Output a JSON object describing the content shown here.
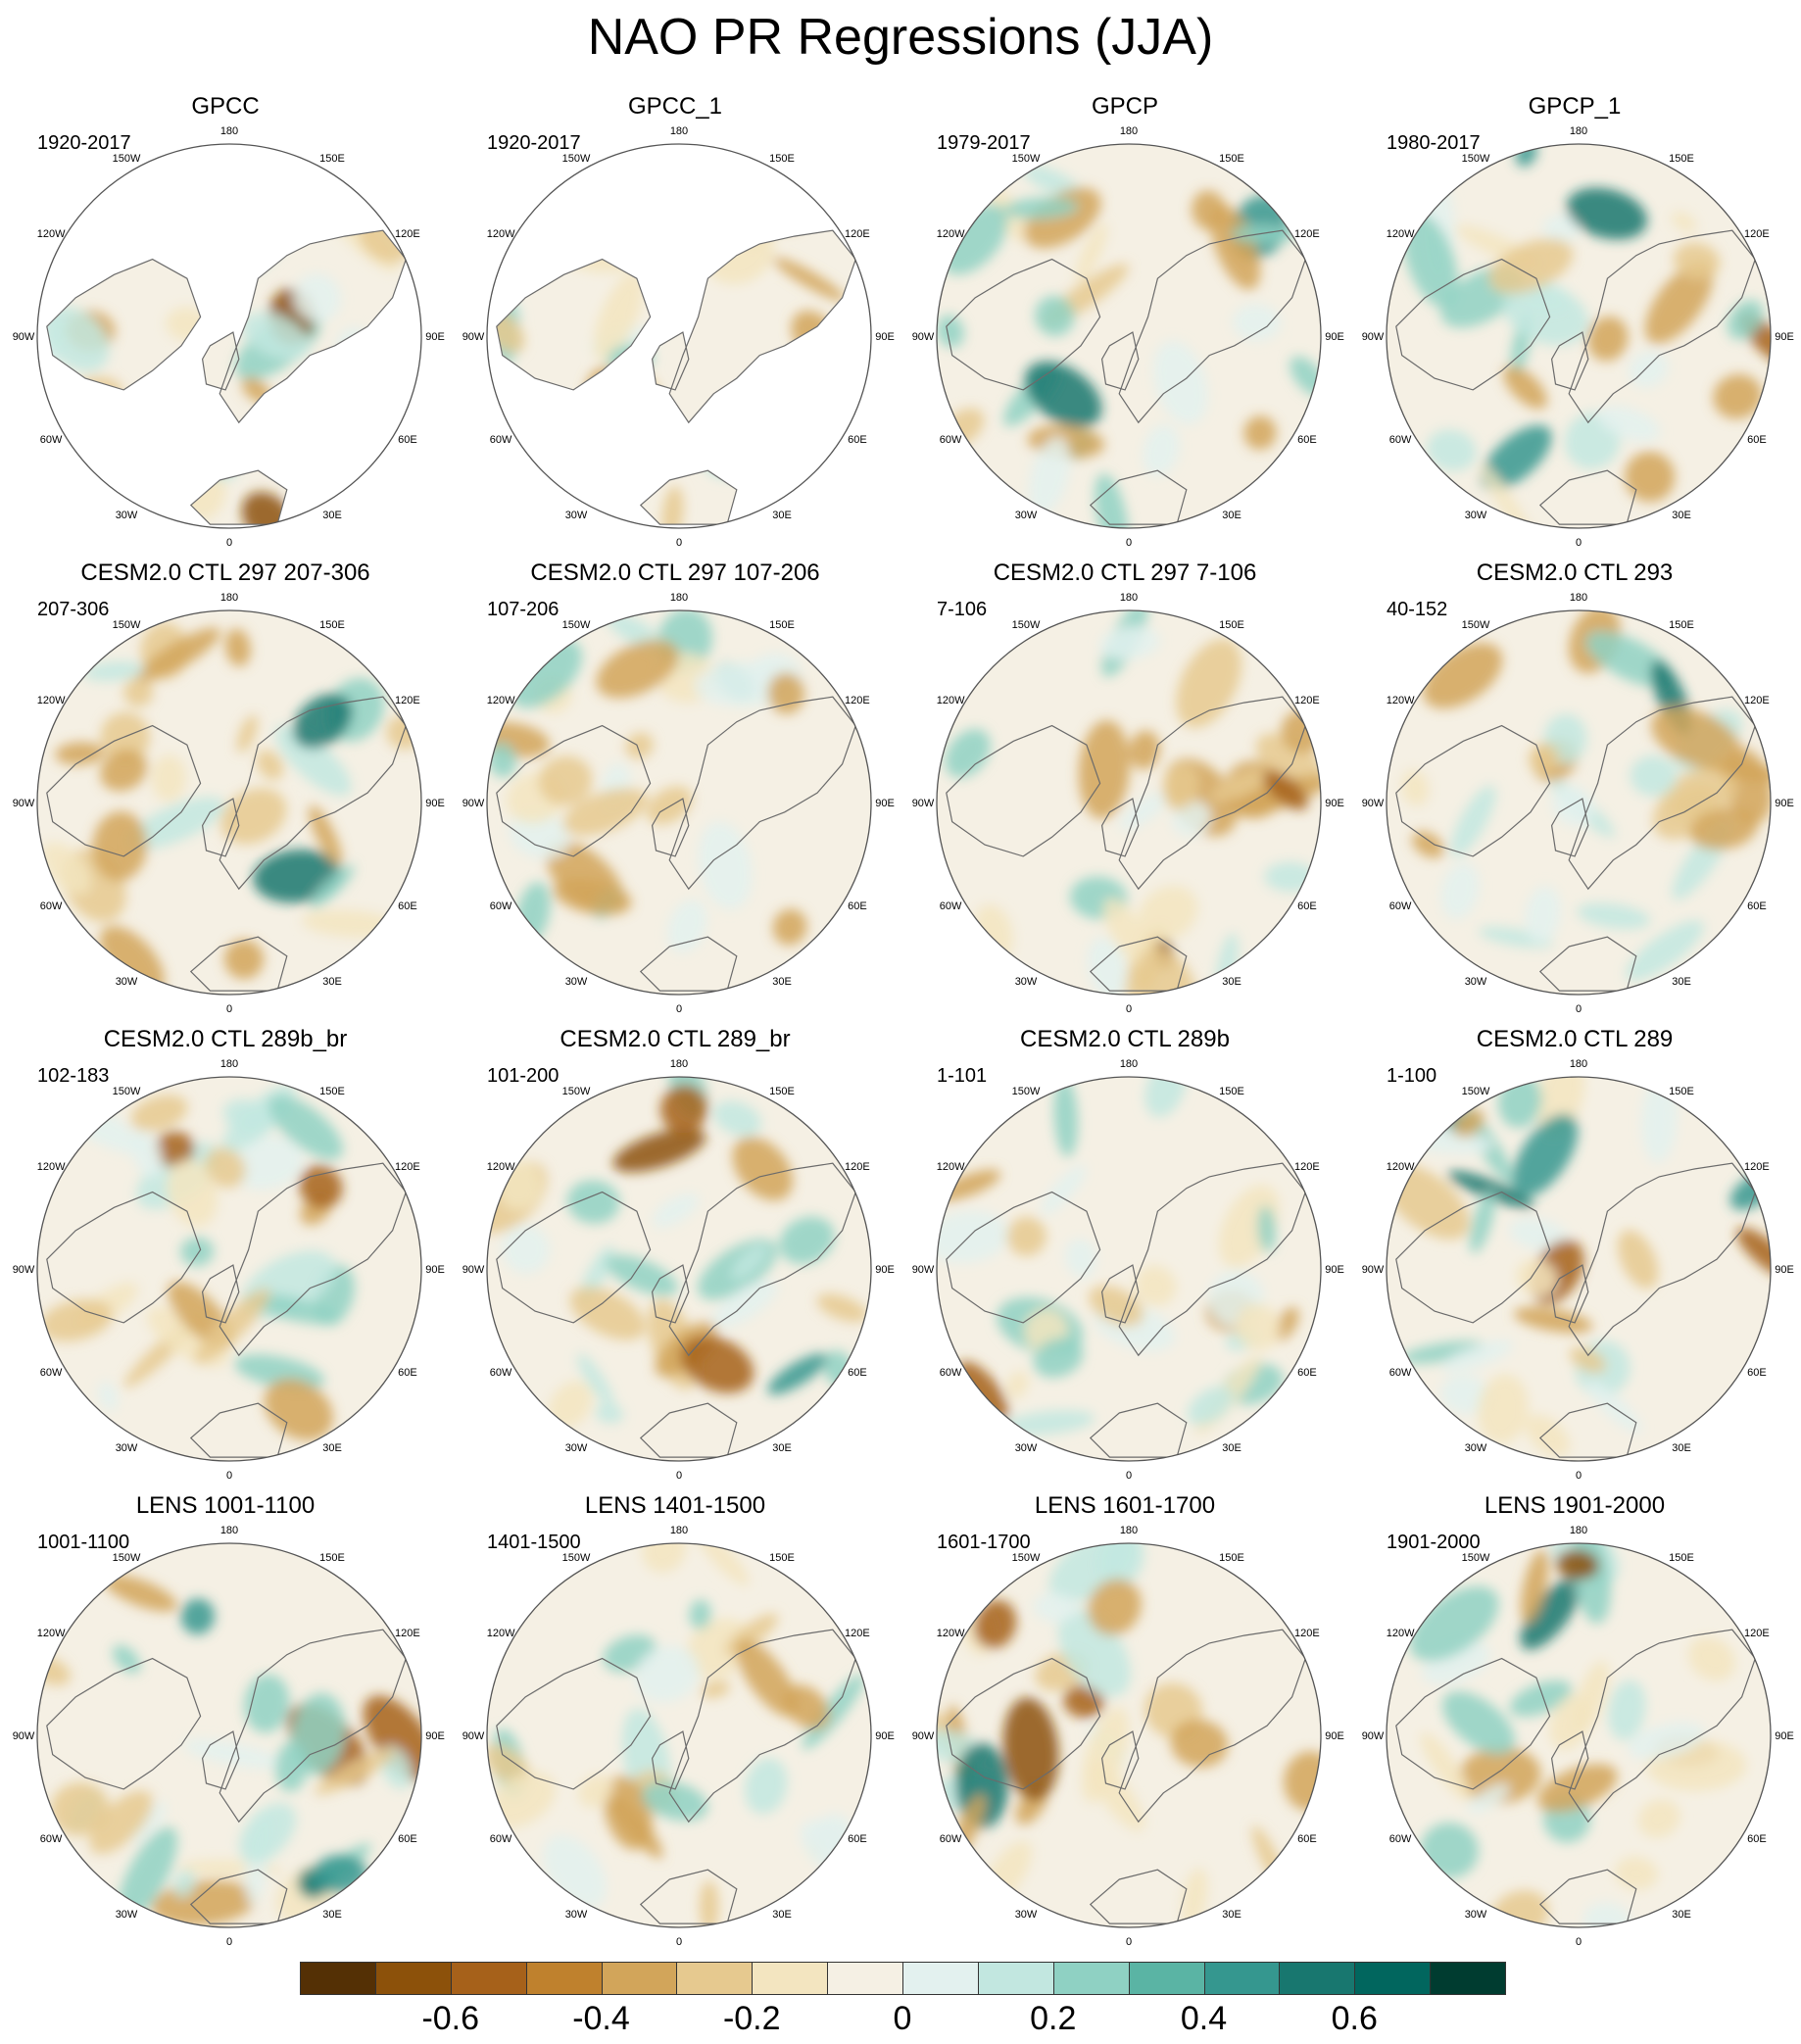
{
  "title": "NAO PR Regressions (JJA)",
  "longitude_labels": [
    "180",
    "150E",
    "120E",
    "90E",
    "60E",
    "30E",
    "0",
    "30W",
    "60W",
    "90W",
    "120W",
    "150W"
  ],
  "panels": [
    {
      "title": "GPCC",
      "period": "1920-2017",
      "land_only": true
    },
    {
      "title": "GPCC_1",
      "period": "1920-2017",
      "land_only": true
    },
    {
      "title": "GPCP",
      "period": "1979-2017",
      "land_only": false
    },
    {
      "title": "GPCP_1",
      "period": "1980-2017",
      "land_only": false
    },
    {
      "title": "CESM2.0 CTL 297 207-306",
      "period": "207-306",
      "land_only": false
    },
    {
      "title": "CESM2.0 CTL 297 107-206",
      "period": "107-206",
      "land_only": false
    },
    {
      "title": "CESM2.0 CTL 297 7-106",
      "period": "7-106",
      "land_only": false
    },
    {
      "title": "CESM2.0 CTL 293",
      "period": "40-152",
      "land_only": false
    },
    {
      "title": "CESM2.0 CTL 289b_br",
      "period": "102-183",
      "land_only": false
    },
    {
      "title": "CESM2.0 CTL 289_br",
      "period": "101-200",
      "land_only": false
    },
    {
      "title": "CESM2.0 CTL 289b",
      "period": "1-101",
      "land_only": false
    },
    {
      "title": "CESM2.0 CTL 289",
      "period": "1-100",
      "land_only": false
    },
    {
      "title": "LENS 1001-1100",
      "period": "1001-1100",
      "land_only": false
    },
    {
      "title": "LENS 1401-1500",
      "period": "1401-1500",
      "land_only": false
    },
    {
      "title": "LENS 1601-1700",
      "period": "1601-1700",
      "land_only": false
    },
    {
      "title": "LENS 1901-2000",
      "period": "1901-2000",
      "land_only": false
    }
  ],
  "colorbar": {
    "colors": [
      "#543005",
      "#8c510a",
      "#a6611a",
      "#bf812d",
      "#d2a55a",
      "#e6c98f",
      "#f3e5c0",
      "#f5f0e4",
      "#e3f1ef",
      "#c2e7e0",
      "#8fd1c3",
      "#5ab4a4",
      "#35978f",
      "#18776f",
      "#01665e",
      "#003c30"
    ],
    "tick_labels": [
      "-0.6",
      "-0.4",
      "-0.2",
      "0",
      "0.2",
      "0.4",
      "0.6"
    ]
  }
}
